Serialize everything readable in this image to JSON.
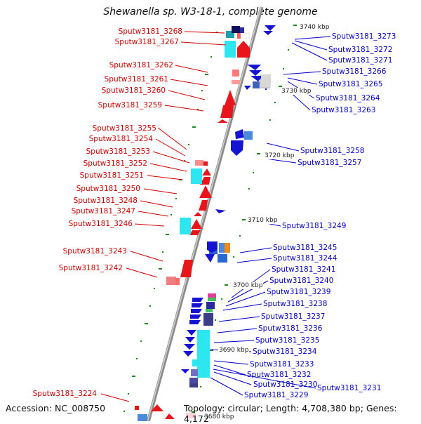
{
  "title": "Shewanella sp. W3-18-1, complete genome",
  "footer": {
    "accession": "Accession: NC_008750",
    "summary": "Topology: circular; Length: 4,708,380 bp; Genes: 4,172"
  },
  "ticks": {
    "t3740": "3740 kbp",
    "t3730": "3730 kbp",
    "t3720": "3720 kbp",
    "t3710": "3710 kbp",
    "t3700": "3700 kbp",
    "t3690": "3690 kbp",
    "t3680": "3680 kbp"
  },
  "left_labels": [
    "Sputw3181_3268",
    "Sputw3181_3267",
    "Sputw3181_3262",
    "Sputw3181_3261",
    "Sputw3181_3260",
    "Sputw3181_3259",
    "Sputw3181_3255",
    "Sputw3181_3254",
    "Sputw3181_3253",
    "Sputw3181_3252",
    "Sputw3181_3251",
    "Sputw3181_3250",
    "Sputw3181_3248",
    "Sputw3181_3247",
    "Sputw3181_3246",
    "Sputw3181_3243",
    "Sputw3181_3242",
    "Sputw3181_3224"
  ],
  "right_labels": [
    "Sputw3181_3273",
    "Sputw3181_3272",
    "Sputw3181_3271",
    "Sputw3181_3266",
    "Sputw3181_3265",
    "Sputw3181_3264",
    "Sputw3181_3263",
    "Sputw3181_3258",
    "Sputw3181_3257",
    "Sputw3181_3249",
    "Sputw3181_3245",
    "Sputw3181_3244",
    "Sputw3181_3241",
    "Sputw3181_3240",
    "Sputw3181_3239",
    "Sputw3181_3238",
    "Sputw3181_3237",
    "Sputw3181_3236",
    "Sputw3181_3235",
    "Sputw3181_3234",
    "Sputw3181_3233",
    "Sputw3181_3232",
    "Sputw3181_3230",
    "Sputw3181_3231",
    "Sputw3181_3229"
  ],
  "colors": {
    "forward_strand": "#e8151a",
    "reverse_strand": "#1414d2",
    "backbone": "#9a9a9a",
    "accent_cyan": "#2ee6f0",
    "accent_orange": "#f08a1c",
    "accent_magenta": "#e0409a"
  }
}
